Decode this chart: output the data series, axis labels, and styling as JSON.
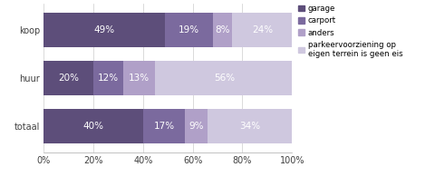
{
  "categories": [
    "totaal",
    "huur",
    "koop"
  ],
  "series": [
    {
      "label": "garage",
      "values": [
        40,
        20,
        49
      ],
      "color": "#5d4e7a"
    },
    {
      "label": "carport",
      "values": [
        17,
        12,
        19
      ],
      "color": "#7b6a9e"
    },
    {
      "label": "anders",
      "values": [
        9,
        13,
        8
      ],
      "color": "#b0a0c8"
    },
    {
      "label": "parkeervoorziening op\neigen terrein is geen eis",
      "values": [
        34,
        56,
        24
      ],
      "color": "#cfc8df"
    }
  ],
  "xlim": [
    0,
    100
  ],
  "xtick_labels": [
    "0%",
    "20%",
    "40%",
    "60%",
    "80%",
    "100%"
  ],
  "xtick_values": [
    0,
    20,
    40,
    60,
    80,
    100
  ],
  "bar_height": 0.72,
  "background_color": "#ffffff",
  "text_color": "#404040",
  "font_size": 7.0,
  "label_font_size": 7.5
}
